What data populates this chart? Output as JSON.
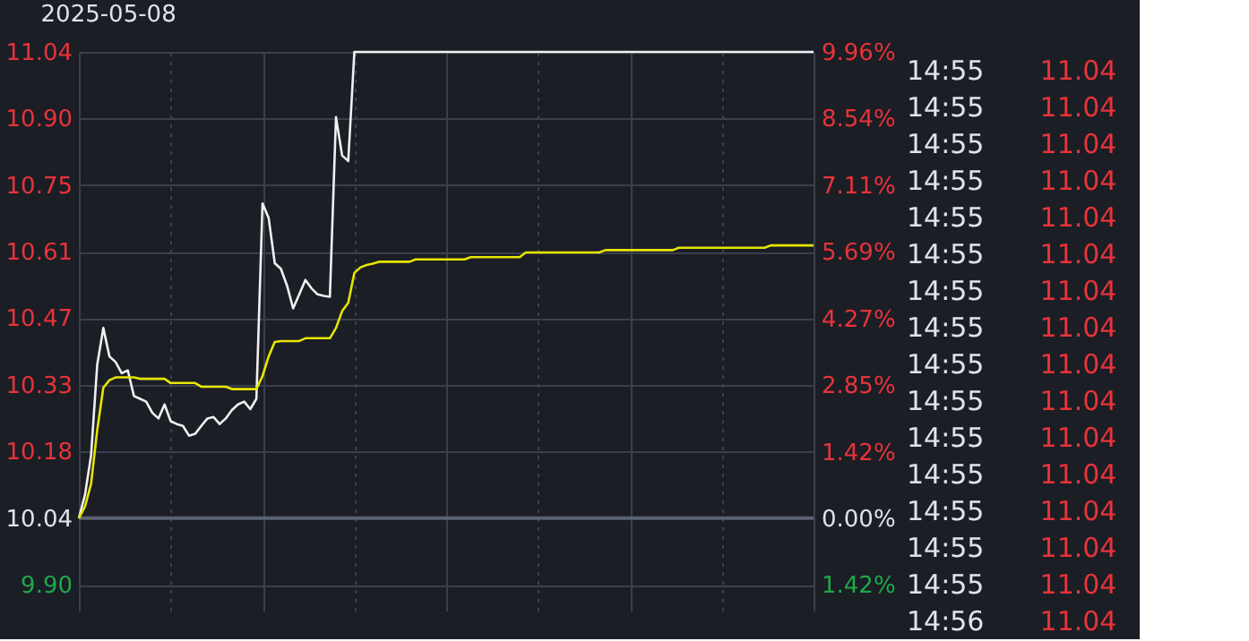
{
  "chart_data": {
    "type": "line",
    "title": "2025-05-08",
    "categories": [
      null,
      null,
      null,
      null,
      null,
      null,
      null,
      null,
      null,
      null,
      null,
      null,
      null,
      null,
      null,
      null,
      null,
      null,
      null,
      null,
      null,
      null,
      null,
      null,
      null,
      null,
      null,
      null,
      null,
      null,
      null,
      null,
      null,
      null,
      null,
      null,
      null,
      null,
      null,
      null,
      null,
      null,
      null,
      null,
      null,
      null,
      null,
      null,
      null,
      null,
      null,
      null,
      null,
      null,
      null,
      null,
      null,
      null,
      null,
      null,
      null,
      null,
      null,
      null,
      null,
      null,
      null,
      null,
      null,
      null,
      null,
      null,
      null,
      null,
      null,
      null,
      null,
      null,
      null,
      null,
      null,
      null,
      null,
      null,
      null,
      null,
      null,
      null,
      null,
      null,
      null,
      null,
      null,
      null,
      null,
      null,
      null,
      null,
      null,
      null,
      null,
      null,
      null,
      null,
      null,
      null,
      null,
      null,
      null,
      null,
      null,
      null,
      null,
      null,
      null,
      null,
      null,
      null,
      null,
      null,
      null
    ],
    "series": [
      {
        "color": "#f0f0f0",
        "values": [
          10.04,
          10.09,
          10.175,
          10.369,
          10.448,
          10.387,
          10.375,
          10.351,
          10.357,
          10.302,
          10.296,
          10.29,
          10.266,
          10.254,
          10.284,
          10.248,
          10.242,
          10.238,
          10.217,
          10.221,
          10.238,
          10.254,
          10.257,
          10.242,
          10.254,
          10.272,
          10.284,
          10.29,
          10.274,
          10.296,
          10.715,
          10.684,
          10.587,
          10.575,
          10.539,
          10.49,
          10.52,
          10.551,
          10.533,
          10.52,
          10.517,
          10.515,
          10.9,
          10.818,
          10.806,
          11.04,
          11.04,
          11.04,
          11.04,
          11.04,
          11.04,
          11.04,
          11.04,
          11.04,
          11.04,
          11.04,
          11.04,
          11.04,
          11.04,
          11.04,
          11.04,
          11.04,
          11.04,
          11.04,
          11.04,
          11.04,
          11.04,
          11.04,
          11.04,
          11.04,
          11.04,
          11.04,
          11.04,
          11.04,
          11.04,
          11.04,
          11.04,
          11.04,
          11.04,
          11.04,
          11.04,
          11.04,
          11.04,
          11.04,
          11.04,
          11.04,
          11.04,
          11.04,
          11.04,
          11.04,
          11.04,
          11.04,
          11.04,
          11.04,
          11.04,
          11.04,
          11.04,
          11.04,
          11.04,
          11.04,
          11.04,
          11.04,
          11.04,
          11.04,
          11.04,
          11.04,
          11.04,
          11.04,
          11.04,
          11.04,
          11.04,
          11.04,
          11.04,
          11.04,
          11.04,
          11.04,
          11.04,
          11.04,
          11.04,
          11.04,
          11.04
        ]
      },
      {
        "color": "#e6e600",
        "values": [
          10.04,
          10.065,
          10.114,
          10.229,
          10.32,
          10.336,
          10.342,
          10.342,
          10.342,
          10.342,
          10.339,
          10.339,
          10.339,
          10.339,
          10.339,
          10.33,
          10.33,
          10.33,
          10.33,
          10.33,
          10.322,
          10.322,
          10.322,
          10.322,
          10.322,
          10.317,
          10.317,
          10.317,
          10.317,
          10.317,
          10.345,
          10.387,
          10.418,
          10.42,
          10.42,
          10.42,
          10.42,
          10.426,
          10.426,
          10.426,
          10.426,
          10.426,
          10.448,
          10.484,
          10.502,
          10.566,
          10.578,
          10.583,
          10.586,
          10.59,
          10.59,
          10.59,
          10.59,
          10.59,
          10.59,
          10.595,
          10.595,
          10.595,
          10.595,
          10.595,
          10.595,
          10.595,
          10.595,
          10.595,
          10.6,
          10.6,
          10.6,
          10.6,
          10.6,
          10.6,
          10.6,
          10.6,
          10.6,
          10.61,
          10.61,
          10.61,
          10.61,
          10.61,
          10.61,
          10.61,
          10.61,
          10.61,
          10.61,
          10.61,
          10.61,
          10.61,
          10.615,
          10.615,
          10.615,
          10.615,
          10.615,
          10.615,
          10.615,
          10.615,
          10.615,
          10.615,
          10.615,
          10.615,
          10.62,
          10.62,
          10.62,
          10.62,
          10.62,
          10.62,
          10.62,
          10.62,
          10.62,
          10.62,
          10.62,
          10.62,
          10.62,
          10.62,
          10.62,
          10.625,
          10.625,
          10.625,
          10.625,
          10.625,
          10.625,
          10.625,
          10.625
        ]
      }
    ],
    "ylim": [
      9.842,
      11.04
    ],
    "yticks": [
      {
        "value": 9.897,
        "label": "9.90"
      },
      10.04,
      {
        "value": 10.183,
        "label": "10.18"
      },
      {
        "value": 10.326,
        "label": "10.33"
      },
      {
        "value": 10.469,
        "label": "10.47"
      },
      {
        "value": 10.611,
        "label": "10.61"
      },
      {
        "value": 10.754,
        "label": "10.75"
      },
      {
        "value": 10.897,
        "label": "10.90"
      },
      11.04
    ],
    "y2lim": [
      -1.972,
      9.96
    ],
    "y2ticks": [
      {
        "value": -1.42,
        "label": "1.42%"
      },
      {
        "value": 0,
        "label": "0.00%"
      },
      {
        "value": 1.42,
        "label": "1.42%"
      },
      {
        "value": 2.85,
        "label": "2.85%"
      },
      {
        "value": 4.27,
        "label": "4.27%"
      },
      {
        "value": 5.69,
        "label": "5.69%"
      },
      {
        "value": 7.11,
        "label": "7.11%"
      },
      {
        "value": 8.54,
        "label": "8.54%"
      },
      {
        "value": 9.96,
        "label": "9.96%"
      }
    ],
    "ref_lines": [
      {
        "axis": "y2",
        "value": 0,
        "color": "#5a6270"
      }
    ],
    "grid": true,
    "legend": false,
    "tick_labels": "y",
    "annotations": [
      "14:55 11.04",
      "14:55 11.04",
      "14:55 11.04",
      "14:55 11.04",
      "14:55 11.04",
      "14:55 11.04",
      "14:55 11.04",
      "14:55 11.04",
      "14:55 11.04",
      "14:55 11.04",
      "14:55 11.04",
      "14:55 11.04",
      "14:55 11.04",
      "14:55 11.04",
      "14:55 11.04",
      "14:56 11.04"
    ]
  }
}
